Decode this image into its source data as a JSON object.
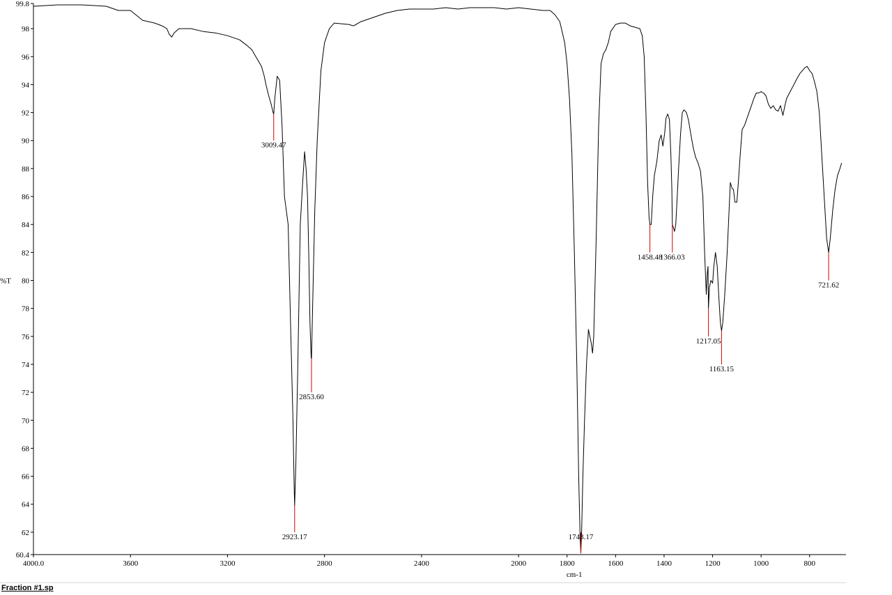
{
  "footer": {
    "filename": "Fraction #1.sp"
  },
  "chart_data": {
    "type": "line",
    "title": "",
    "xlabel": "cm-1",
    "ylabel": "%T",
    "x_reversed": true,
    "xlim": [
      4000.0,
      650
    ],
    "ylim": [
      60.4,
      99.8
    ],
    "x_ticks": [
      {
        "v": 4000,
        "label": "4000.0"
      },
      {
        "v": 3600,
        "label": "3600"
      },
      {
        "v": 3200,
        "label": "3200"
      },
      {
        "v": 2800,
        "label": "2800"
      },
      {
        "v": 2400,
        "label": "2400"
      },
      {
        "v": 2000,
        "label": "2000"
      },
      {
        "v": 1800,
        "label": "1800"
      },
      {
        "v": 1600,
        "label": "1600"
      },
      {
        "v": 1400,
        "label": "1400"
      },
      {
        "v": 1200,
        "label": "1200"
      },
      {
        "v": 1000,
        "label": "1000"
      },
      {
        "v": 800,
        "label": "800"
      }
    ],
    "y_ticks": [
      {
        "v": 99.8,
        "label": "99.8"
      },
      {
        "v": 98,
        "label": "98"
      },
      {
        "v": 96,
        "label": "96"
      },
      {
        "v": 94,
        "label": "94"
      },
      {
        "v": 92,
        "label": "92"
      },
      {
        "v": 90,
        "label": "90"
      },
      {
        "v": 88,
        "label": "88"
      },
      {
        "v": 86,
        "label": "86"
      },
      {
        "v": 84,
        "label": "84"
      },
      {
        "v": 82,
        "label": "82"
      },
      {
        "v": 80,
        "label": "80"
      },
      {
        "v": 78,
        "label": "78"
      },
      {
        "v": 76,
        "label": "76"
      },
      {
        "v": 74,
        "label": "74"
      },
      {
        "v": 72,
        "label": "72"
      },
      {
        "v": 70,
        "label": "70"
      },
      {
        "v": 68,
        "label": "68"
      },
      {
        "v": 66,
        "label": "66"
      },
      {
        "v": 64,
        "label": "64"
      },
      {
        "v": 62,
        "label": "62"
      },
      {
        "v": 60.4,
        "label": "60.4"
      }
    ],
    "series": [
      {
        "color": "#000000",
        "points": [
          [
            4000,
            99.6
          ],
          [
            3900,
            99.7
          ],
          [
            3800,
            99.7
          ],
          [
            3700,
            99.6
          ],
          [
            3650,
            99.3
          ],
          [
            3600,
            99.3
          ],
          [
            3550,
            98.6
          ],
          [
            3500,
            98.4
          ],
          [
            3470,
            98.2
          ],
          [
            3450,
            98.0
          ],
          [
            3440,
            97.6
          ],
          [
            3430,
            97.4
          ],
          [
            3420,
            97.7
          ],
          [
            3400,
            98.0
          ],
          [
            3350,
            98.0
          ],
          [
            3300,
            97.8
          ],
          [
            3250,
            97.7
          ],
          [
            3200,
            97.5
          ],
          [
            3150,
            97.2
          ],
          [
            3120,
            96.8
          ],
          [
            3100,
            96.5
          ],
          [
            3080,
            95.9
          ],
          [
            3060,
            95.3
          ],
          [
            3050,
            94.7
          ],
          [
            3040,
            93.9
          ],
          [
            3030,
            93.2
          ],
          [
            3020,
            92.6
          ],
          [
            3012,
            92.0
          ],
          [
            3009.47,
            91.9
          ],
          [
            3005,
            93.0
          ],
          [
            2995,
            94.6
          ],
          [
            2985,
            94.3
          ],
          [
            2975,
            91.0
          ],
          [
            2965,
            86.0
          ],
          [
            2950,
            84.0
          ],
          [
            2940,
            77.0
          ],
          [
            2930,
            70.0
          ],
          [
            2925,
            65.0
          ],
          [
            2923.17,
            63.9
          ],
          [
            2918,
            67.0
          ],
          [
            2910,
            74.0
          ],
          [
            2900,
            84.0
          ],
          [
            2890,
            87.0
          ],
          [
            2882,
            89.2
          ],
          [
            2876,
            88.0
          ],
          [
            2870,
            86.0
          ],
          [
            2865,
            82.0
          ],
          [
            2860,
            77.0
          ],
          [
            2855,
            74.5
          ],
          [
            2853.6,
            74.4
          ],
          [
            2848,
            79.0
          ],
          [
            2840,
            85.0
          ],
          [
            2830,
            90.0
          ],
          [
            2815,
            95.0
          ],
          [
            2800,
            97.0
          ],
          [
            2780,
            98.0
          ],
          [
            2760,
            98.4
          ],
          [
            2700,
            98.3
          ],
          [
            2680,
            98.2
          ],
          [
            2650,
            98.5
          ],
          [
            2600,
            98.8
          ],
          [
            2550,
            99.1
          ],
          [
            2500,
            99.3
          ],
          [
            2450,
            99.4
          ],
          [
            2400,
            99.4
          ],
          [
            2350,
            99.4
          ],
          [
            2300,
            99.5
          ],
          [
            2250,
            99.4
          ],
          [
            2200,
            99.5
          ],
          [
            2150,
            99.5
          ],
          [
            2100,
            99.5
          ],
          [
            2050,
            99.4
          ],
          [
            2000,
            99.5
          ],
          [
            1950,
            99.4
          ],
          [
            1900,
            99.3
          ],
          [
            1870,
            99.3
          ],
          [
            1850,
            99.0
          ],
          [
            1830,
            98.5
          ],
          [
            1810,
            97.0
          ],
          [
            1800,
            95.5
          ],
          [
            1790,
            93.0
          ],
          [
            1780,
            89.0
          ],
          [
            1770,
            82.0
          ],
          [
            1760,
            74.0
          ],
          [
            1752,
            66.0
          ],
          [
            1746,
            61.5
          ],
          [
            1743.17,
            60.5
          ],
          [
            1740,
            62.0
          ],
          [
            1735,
            66.0
          ],
          [
            1728,
            70.0
          ],
          [
            1720,
            74.0
          ],
          [
            1712,
            76.5
          ],
          [
            1706,
            76.0
          ],
          [
            1700,
            75.5
          ],
          [
            1695,
            74.8
          ],
          [
            1690,
            76.0
          ],
          [
            1680,
            83.0
          ],
          [
            1670,
            91.0
          ],
          [
            1660,
            95.5
          ],
          [
            1650,
            96.2
          ],
          [
            1640,
            96.5
          ],
          [
            1630,
            97.0
          ],
          [
            1620,
            97.8
          ],
          [
            1600,
            98.3
          ],
          [
            1580,
            98.4
          ],
          [
            1560,
            98.4
          ],
          [
            1540,
            98.2
          ],
          [
            1520,
            98.1
          ],
          [
            1500,
            98.0
          ],
          [
            1490,
            97.5
          ],
          [
            1482,
            96.0
          ],
          [
            1475,
            92.0
          ],
          [
            1468,
            87.0
          ],
          [
            1462,
            84.5
          ],
          [
            1458.48,
            84.0
          ],
          [
            1453,
            84.0
          ],
          [
            1447,
            86.0
          ],
          [
            1440,
            87.5
          ],
          [
            1430,
            88.5
          ],
          [
            1420,
            90.0
          ],
          [
            1412,
            90.4
          ],
          [
            1405,
            89.6
          ],
          [
            1398,
            90.5
          ],
          [
            1392,
            91.6
          ],
          [
            1385,
            91.9
          ],
          [
            1378,
            91.5
          ],
          [
            1372,
            89.0
          ],
          [
            1368,
            86.5
          ],
          [
            1366.03,
            84.0
          ],
          [
            1362,
            83.8
          ],
          [
            1357,
            83.5
          ],
          [
            1352,
            84.0
          ],
          [
            1346,
            86.0
          ],
          [
            1340,
            88.0
          ],
          [
            1332,
            90.5
          ],
          [
            1325,
            92.0
          ],
          [
            1318,
            92.2
          ],
          [
            1308,
            92.0
          ],
          [
            1300,
            91.5
          ],
          [
            1290,
            90.5
          ],
          [
            1280,
            89.5
          ],
          [
            1270,
            88.8
          ],
          [
            1260,
            88.4
          ],
          [
            1250,
            87.8
          ],
          [
            1240,
            86.0
          ],
          [
            1233,
            82.0
          ],
          [
            1226,
            79.0
          ],
          [
            1222,
            80.5
          ],
          [
            1219,
            81.0
          ],
          [
            1217.05,
            78.0
          ],
          [
            1213,
            79.5
          ],
          [
            1207,
            80.0
          ],
          [
            1200,
            79.8
          ],
          [
            1195,
            81.0
          ],
          [
            1188,
            82.0
          ],
          [
            1181,
            81.0
          ],
          [
            1175,
            79.0
          ],
          [
            1168,
            77.0
          ],
          [
            1163.15,
            76.4
          ],
          [
            1158,
            77.0
          ],
          [
            1150,
            79.0
          ],
          [
            1140,
            82.0
          ],
          [
            1132,
            85.0
          ],
          [
            1127,
            87.0
          ],
          [
            1120,
            86.6
          ],
          [
            1114,
            86.5
          ],
          [
            1108,
            85.6
          ],
          [
            1100,
            85.6
          ],
          [
            1094,
            87.0
          ],
          [
            1086,
            89.0
          ],
          [
            1078,
            90.8
          ],
          [
            1068,
            91.1
          ],
          [
            1060,
            91.5
          ],
          [
            1050,
            92.0
          ],
          [
            1040,
            92.5
          ],
          [
            1030,
            93.0
          ],
          [
            1020,
            93.4
          ],
          [
            1010,
            93.4
          ],
          [
            1000,
            93.5
          ],
          [
            990,
            93.4
          ],
          [
            980,
            93.2
          ],
          [
            970,
            92.6
          ],
          [
            960,
            92.3
          ],
          [
            950,
            92.5
          ],
          [
            940,
            92.2
          ],
          [
            930,
            92.1
          ],
          [
            920,
            92.5
          ],
          [
            910,
            91.8
          ],
          [
            902,
            92.5
          ],
          [
            895,
            93.0
          ],
          [
            880,
            93.5
          ],
          [
            865,
            94.0
          ],
          [
            850,
            94.5
          ],
          [
            840,
            94.8
          ],
          [
            830,
            95.0
          ],
          [
            820,
            95.2
          ],
          [
            810,
            95.3
          ],
          [
            800,
            95.0
          ],
          [
            790,
            94.8
          ],
          [
            780,
            94.2
          ],
          [
            770,
            93.5
          ],
          [
            760,
            92.0
          ],
          [
            750,
            89.0
          ],
          [
            740,
            86.0
          ],
          [
            730,
            83.0
          ],
          [
            721.62,
            82.0
          ],
          [
            715,
            83.0
          ],
          [
            705,
            85.0
          ],
          [
            695,
            86.5
          ],
          [
            685,
            87.5
          ],
          [
            675,
            88.0
          ],
          [
            668,
            88.4
          ]
        ]
      }
    ],
    "peaks": [
      {
        "x": 3009.47,
        "y": 91.9,
        "label": "3009.47",
        "label_y": 90.0
      },
      {
        "x": 2923.17,
        "y": 63.9,
        "label": "2923.17",
        "label_y": 62.0
      },
      {
        "x": 2853.6,
        "y": 74.4,
        "label": "2853.60",
        "label_y": 72.0
      },
      {
        "x": 1743.17,
        "y": 60.5,
        "label": "1743.17",
        "label_y": 62.0
      },
      {
        "x": 1458.48,
        "y": 84.0,
        "label": "1458.48",
        "label_y": 82.0
      },
      {
        "x": 1366.03,
        "y": 84.0,
        "label": "1366.03",
        "label_y": 82.0
      },
      {
        "x": 1217.05,
        "y": 78.0,
        "label": "1217.05",
        "label_y": 76.0
      },
      {
        "x": 1163.15,
        "y": 76.4,
        "label": "1163.15",
        "label_y": 74.0
      },
      {
        "x": 721.62,
        "y": 82.0,
        "label": "721.62",
        "label_y": 80.0
      }
    ],
    "peak_marker_color": "#cc0000",
    "grid": false
  }
}
